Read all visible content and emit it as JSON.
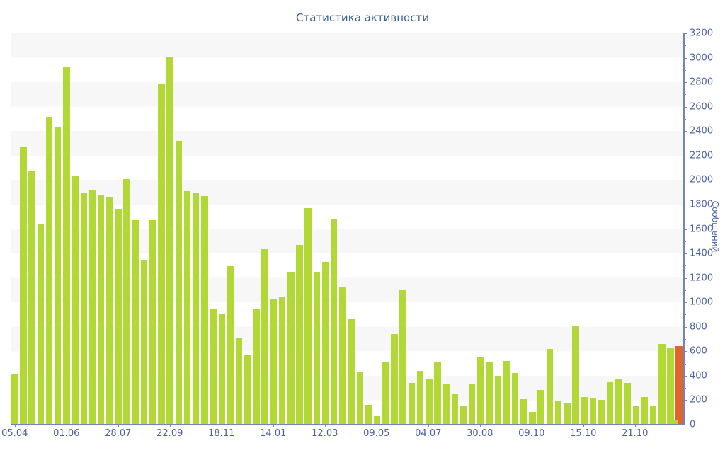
{
  "title": "Статистика активности",
  "colors": {
    "bar_green": "#b2d836",
    "bar_orange": "#e4632b",
    "title_text": "#3d6298",
    "axis_text": "#4c61a3",
    "axis_line": "#7285bc",
    "stripe": "#f7f7f8"
  },
  "y_axis": {
    "title": "Сообщений",
    "min": 0,
    "max": 3200,
    "major_step": 200,
    "minor_step": 100
  },
  "x_axis": {
    "tick_labels": [
      "05.04",
      "01.06",
      "28.07",
      "22.09",
      "18.11",
      "14.01",
      "12.03",
      "09.05",
      "04.07",
      "30.08",
      "09.10",
      "15.10",
      "21.10"
    ],
    "label_bar_indices": [
      0,
      6,
      12,
      18,
      24,
      30,
      36,
      42,
      48,
      54,
      60,
      66,
      72
    ]
  },
  "chart_data": {
    "type": "bar",
    "title": "Статистика активности",
    "ylabel": "Сообщений",
    "ylim": [
      0,
      3200
    ],
    "grid": "horizontal-stripes-every-200",
    "legend": "none",
    "bar_count": 78,
    "values": [
      410,
      2270,
      2070,
      1640,
      2520,
      2430,
      2920,
      2030,
      1890,
      1920,
      1880,
      1865,
      1765,
      2010,
      1670,
      1350,
      1670,
      2790,
      3010,
      2320,
      1910,
      1900,
      1870,
      945,
      910,
      1296,
      714,
      569,
      949,
      1437,
      1032,
      1045,
      1250,
      1470,
      1770,
      1250,
      1330,
      1680,
      1120,
      870,
      430,
      160,
      70,
      510,
      740,
      1100,
      340,
      440,
      370,
      510,
      330,
      250,
      150,
      330,
      550,
      510,
      400,
      520,
      420,
      210,
      105,
      285,
      620,
      190,
      180,
      810,
      225,
      215,
      205,
      345,
      370,
      340,
      155,
      225,
      155,
      660,
      630,
      640
    ],
    "highlight_last_bar_color": "#e4632b",
    "last_slot_small_green_value": 40,
    "x_tick_labels": [
      "05.04",
      "01.06",
      "28.07",
      "22.09",
      "18.11",
      "14.01",
      "12.03",
      "09.05",
      "04.07",
      "30.08",
      "09.10",
      "15.10",
      "21.10"
    ],
    "x_tick_bar_indices": [
      0,
      6,
      12,
      18,
      24,
      30,
      36,
      42,
      48,
      54,
      60,
      66,
      72
    ]
  }
}
